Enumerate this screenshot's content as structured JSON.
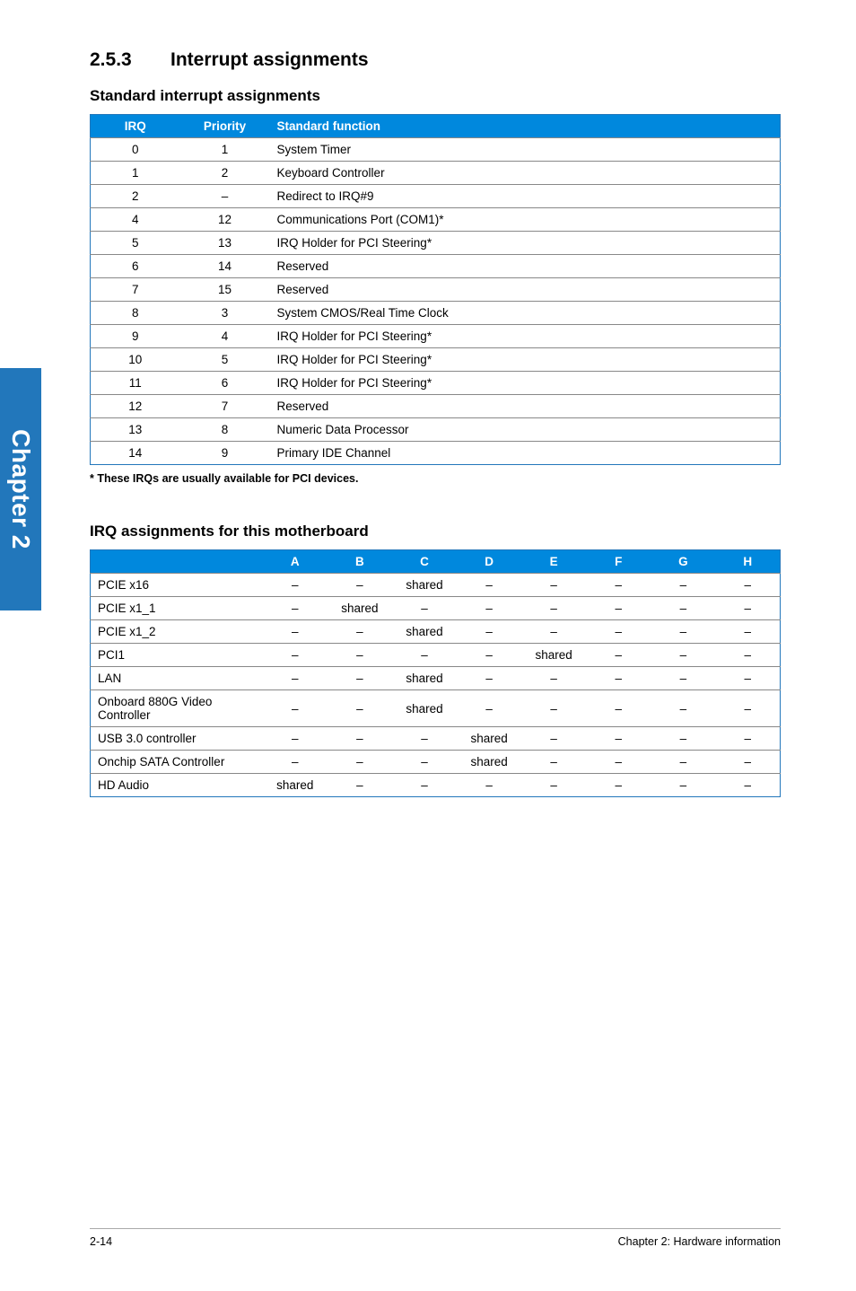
{
  "chapter_tab": "Chapter 2",
  "section": {
    "number": "2.5.3",
    "title": "Interrupt assignments"
  },
  "table1": {
    "heading": "Standard interrupt assignments",
    "headers": [
      "IRQ",
      "Priority",
      "Standard function"
    ],
    "rows": [
      [
        "0",
        "1",
        "System Timer"
      ],
      [
        "1",
        "2",
        "Keyboard Controller"
      ],
      [
        "2",
        "–",
        "Redirect to IRQ#9"
      ],
      [
        "4",
        "12",
        "Communications Port (COM1)*"
      ],
      [
        "5",
        "13",
        "IRQ Holder for PCI Steering*"
      ],
      [
        "6",
        "14",
        "Reserved"
      ],
      [
        "7",
        "15",
        "Reserved"
      ],
      [
        "8",
        "3",
        "System CMOS/Real Time Clock"
      ],
      [
        "9",
        "4",
        "IRQ Holder for PCI Steering*"
      ],
      [
        "10",
        "5",
        "IRQ Holder for PCI Steering*"
      ],
      [
        "11",
        "6",
        "IRQ Holder for PCI Steering*"
      ],
      [
        "12",
        "7",
        "Reserved"
      ],
      [
        "13",
        "8",
        "Numeric Data Processor"
      ],
      [
        "14",
        "9",
        "Primary IDE Channel"
      ]
    ],
    "footnote": "* These IRQs are usually available for PCI devices."
  },
  "table2": {
    "heading": "IRQ assignments for this motherboard",
    "headers": [
      "",
      "A",
      "B",
      "C",
      "D",
      "E",
      "F",
      "G",
      "H"
    ],
    "rows": [
      [
        "PCIE x16",
        "–",
        "–",
        "shared",
        "–",
        "–",
        "–",
        "–",
        "–"
      ],
      [
        "PCIE x1_1",
        "–",
        "shared",
        "–",
        "–",
        "–",
        "–",
        "–",
        "–"
      ],
      [
        "PCIE x1_2",
        "–",
        "–",
        "shared",
        "–",
        "–",
        "–",
        "–",
        "–"
      ],
      [
        "PCI1",
        "–",
        "–",
        "–",
        "–",
        "shared",
        "–",
        "–",
        "–"
      ],
      [
        "LAN",
        "–",
        "–",
        "shared",
        "–",
        "–",
        "–",
        "–",
        "–"
      ],
      [
        "Onboard 880G Video Controller",
        "–",
        "–",
        "shared",
        "–",
        "–",
        "–",
        "–",
        "–"
      ],
      [
        "USB 3.0 controller",
        "–",
        "–",
        "–",
        "shared",
        "–",
        "–",
        "–",
        "–"
      ],
      [
        "Onchip SATA Controller",
        "–",
        "–",
        "–",
        "shared",
        "–",
        "–",
        "–",
        "–"
      ],
      [
        "HD Audio",
        "shared",
        "–",
        "–",
        "–",
        "–",
        "–",
        "–",
        "–"
      ]
    ]
  },
  "footer": {
    "left": "2-14",
    "right": "Chapter 2: Hardware information"
  }
}
